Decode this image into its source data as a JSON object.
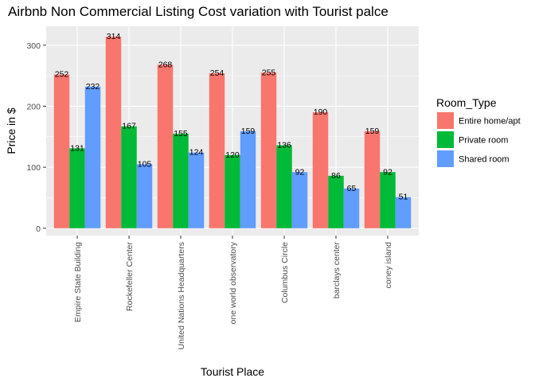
{
  "chart_data": {
    "type": "bar",
    "title": "Airbnb Non Commercial Listing Cost variation with Tourist palce",
    "xlabel": "Tourist Place",
    "ylabel": "Price in $",
    "ylim": [
      -12,
      331
    ],
    "yticks": [
      0,
      100,
      200,
      300
    ],
    "grid": true,
    "legend_position": "right",
    "legend_title": "Room_Type",
    "categories": [
      "Empire State Building",
      "Rockefeller Center",
      "United Nations Headquarters",
      "one world observatory",
      "Columbus Circle",
      "barclays center",
      "coney island"
    ],
    "series": [
      {
        "name": "Entire home/apt",
        "color": "#F8766D",
        "values": [
          252,
          314,
          268,
          254,
          255,
          190,
          159
        ]
      },
      {
        "name": "Private room",
        "color": "#00BA38",
        "values": [
          131,
          167,
          155,
          120,
          136,
          86,
          92
        ]
      },
      {
        "name": "Shared room",
        "color": "#619CFF",
        "values": [
          232,
          105,
          124,
          159,
          92,
          65,
          51
        ]
      }
    ]
  },
  "colors": {
    "panel_background": "#EBEBEB",
    "grid_major": "#FFFFFF",
    "axis_text": "#4D4D4D"
  }
}
